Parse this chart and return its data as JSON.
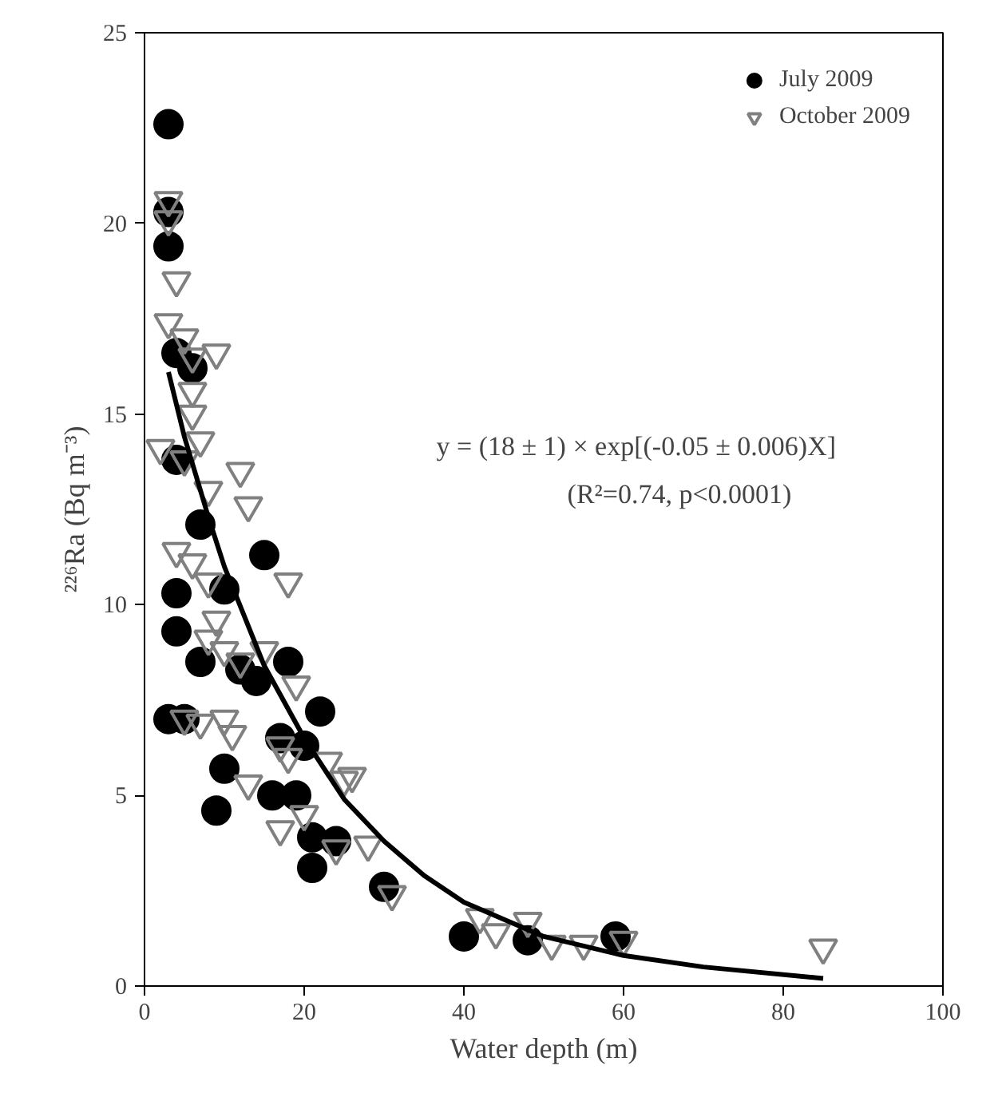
{
  "chart_data": {
    "type": "scatter",
    "xlabel": "Water depth (m)",
    "ylabel": "²²⁶Ra (Bq m⁻³)",
    "xlim": [
      0,
      100
    ],
    "xticks": [
      0,
      20,
      40,
      60,
      80,
      100
    ],
    "ylim": [
      0,
      25
    ],
    "yticks": [
      0,
      5,
      10,
      15,
      20,
      25
    ],
    "grid": false,
    "legend": "top right",
    "series": [
      {
        "name": "July 2009",
        "color": "#000000",
        "marker": "circle",
        "x": [
          3,
          3,
          3,
          4,
          6,
          4,
          7,
          10,
          4,
          15,
          4,
          7,
          14,
          18,
          3,
          5,
          10,
          9,
          16,
          19,
          20,
          22,
          21,
          21,
          24,
          30,
          40,
          48,
          59,
          12,
          17
        ],
        "values": [
          22.6,
          20.3,
          19.4,
          16.6,
          16.2,
          13.8,
          12.1,
          10.4,
          10.3,
          11.3,
          9.3,
          8.5,
          8.0,
          8.5,
          7.0,
          7.0,
          5.7,
          4.6,
          5.0,
          5.0,
          6.3,
          7.2,
          3.9,
          3.1,
          3.8,
          2.6,
          1.3,
          1.2,
          1.3,
          8.3,
          6.5
        ]
      },
      {
        "name": "October 2009",
        "color": "#808080",
        "marker": "triangle",
        "x": [
          3,
          3,
          4,
          3,
          5,
          6,
          9,
          6,
          6,
          2,
          5,
          7,
          12,
          13,
          8,
          4,
          6,
          8,
          18,
          9,
          8,
          10,
          12,
          15,
          5,
          7,
          10,
          11,
          13,
          17,
          19,
          18,
          20,
          17,
          23,
          25,
          26,
          24,
          28,
          31,
          42,
          44,
          48,
          51,
          55,
          60,
          85
        ],
        "values": [
          20.6,
          20.1,
          18.5,
          17.4,
          17.0,
          16.5,
          16.6,
          15.6,
          15.0,
          14.1,
          13.8,
          14.3,
          13.5,
          12.6,
          13.0,
          11.4,
          11.1,
          10.6,
          10.6,
          9.6,
          9.1,
          8.8,
          8.5,
          8.8,
          7.0,
          6.9,
          7.0,
          6.6,
          5.3,
          6.3,
          7.9,
          6.0,
          4.5,
          4.1,
          5.9,
          5.4,
          5.5,
          3.6,
          3.7,
          2.4,
          1.8,
          1.4,
          1.7,
          1.1,
          1.1,
          1.2,
          1.0
        ]
      },
      {
        "type": "line",
        "color": "#000000",
        "x": [
          3,
          5,
          8,
          10,
          15,
          20,
          25,
          30,
          35,
          40,
          50,
          60,
          70,
          85
        ],
        "values": [
          16.1,
          14.4,
          12.3,
          11.0,
          8.4,
          6.5,
          4.9,
          3.8,
          2.9,
          2.2,
          1.3,
          0.8,
          0.5,
          0.2
        ]
      }
    ],
    "annotations": [
      "y = (18 ± 1) × exp[(-0.05  ± 0.006)X]",
      "(R²=0.74, p<0.0001)"
    ]
  }
}
